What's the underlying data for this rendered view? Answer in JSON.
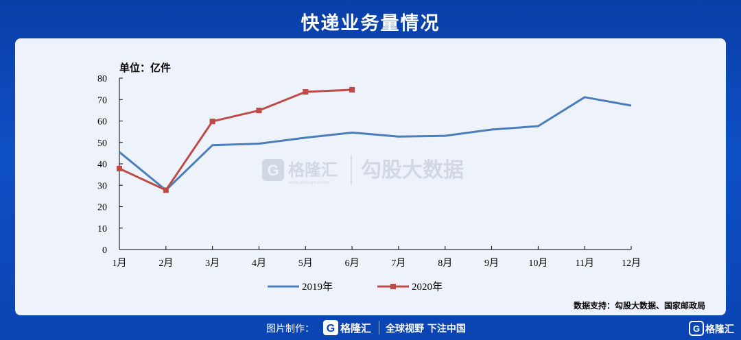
{
  "title": "快递业务量情况",
  "chart_data": {
    "type": "line",
    "unit_label": "单位：亿件",
    "categories": [
      "1月",
      "2月",
      "3月",
      "4月",
      "5月",
      "6月",
      "7月",
      "8月",
      "9月",
      "10月",
      "11月",
      "12月"
    ],
    "ylim": [
      0,
      80
    ],
    "yticks": [
      0,
      10,
      20,
      30,
      40,
      50,
      60,
      70,
      80
    ],
    "series": [
      {
        "name": "2019年",
        "color": "#4a7ebb",
        "marker": "none",
        "values": [
          45.5,
          27.7,
          48.7,
          49.4,
          52.2,
          54.6,
          52.7,
          53.1,
          56.0,
          57.6,
          71.1,
          67.2
        ]
      },
      {
        "name": "2020年",
        "color": "#be4b48",
        "marker": "square",
        "values": [
          37.8,
          27.7,
          59.8,
          64.9,
          73.6,
          74.6,
          null,
          null,
          null,
          null,
          null,
          null
        ]
      }
    ],
    "legend_position": "bottom-center",
    "source": "数据支持：勾股大数据、国家邮政局"
  },
  "watermark": {
    "brand": "格隆汇",
    "url": "www.gelonghui.com",
    "product": "勾股大数据"
  },
  "footer": {
    "made_by": "图片制作：",
    "logo_text": "格隆汇",
    "slogan": "全球视野 下注中国",
    "brand_right": "格隆汇"
  }
}
